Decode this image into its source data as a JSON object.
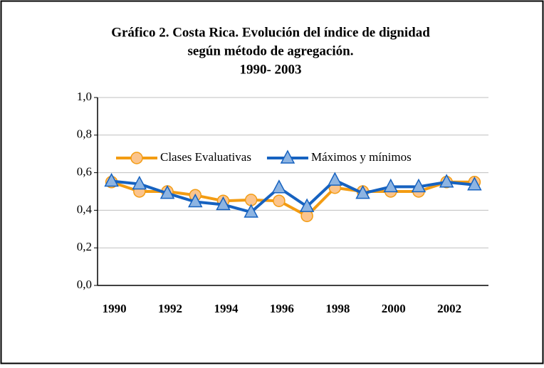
{
  "chart_data": {
    "type": "line",
    "title": [
      "Gráfico 2. Costa Rica. Evolución del índice de dignidad",
      "según método de agregación.",
      "1990- 2003"
    ],
    "categories": [
      "1990",
      null,
      "1992",
      null,
      "1994",
      null,
      "1996",
      null,
      "1998",
      null,
      "2000",
      null,
      "2002",
      null
    ],
    "series": [
      {
        "name": "Clases Evaluativas",
        "color": "#f39c12",
        "marker": "circle",
        "marker_fill": "#fbc48c",
        "values": [
          0.55,
          0.5,
          0.5,
          0.48,
          0.45,
          0.455,
          0.45,
          0.37,
          0.52,
          0.5,
          0.5,
          0.5,
          0.55,
          0.55
        ]
      },
      {
        "name": "Máximos y mínimos",
        "color": "#1662c0",
        "marker": "triangle",
        "marker_fill": "#8db4e2",
        "values": [
          0.555,
          0.54,
          0.49,
          0.445,
          0.43,
          0.39,
          0.52,
          0.42,
          0.56,
          0.49,
          0.525,
          0.525,
          0.55,
          0.535
        ]
      }
    ],
    "ylim": [
      0,
      1
    ],
    "yticks": [
      {
        "value": 0,
        "label": "0,0"
      },
      {
        "value": 0.2,
        "label": "0,2"
      },
      {
        "value": 0.4,
        "label": "0,4"
      },
      {
        "value": 0.6,
        "label": "0,6"
      },
      {
        "value": 0.8,
        "label": "0,8"
      },
      {
        "value": 1,
        "label": "1,0"
      }
    ],
    "grid": true,
    "legend": "inside-top"
  }
}
